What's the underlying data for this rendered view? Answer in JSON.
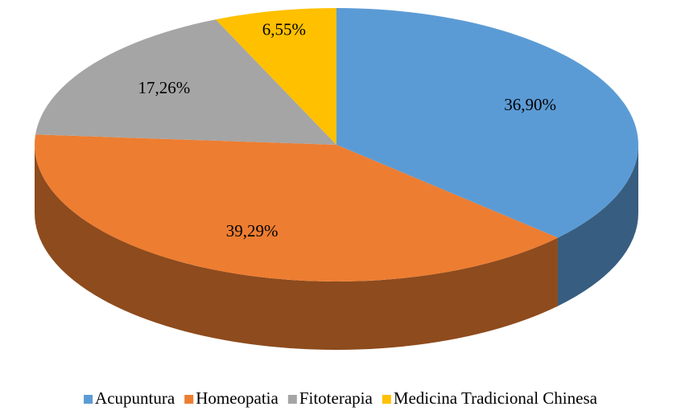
{
  "chart_data": {
    "type": "pie3d",
    "categories": [
      "Acupuntura",
      "Homeopatia",
      "Fitoterapia",
      "Medicina Tradicional Chinesa"
    ],
    "values": [
      36.9,
      39.29,
      17.26,
      6.55
    ],
    "value_labels": [
      "36,90%",
      "39,29%",
      "17,26%",
      "6,55%"
    ],
    "colors": [
      "#5b9bd5",
      "#ed7d31",
      "#a5a5a5",
      "#ffc000"
    ],
    "legend": "bottom"
  }
}
